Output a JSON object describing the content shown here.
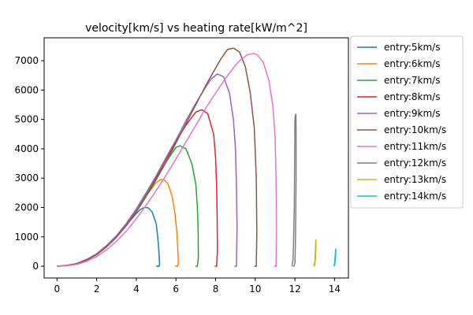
{
  "chart_data": {
    "type": "line",
    "title": "velocity[km/s] vs heating rate[kW/m^2]",
    "xlabel": "",
    "ylabel": "",
    "xlim": [
      -0.65,
      14.7
    ],
    "ylim": [
      -400,
      7780
    ],
    "xticks": [
      0,
      2,
      4,
      6,
      8,
      10,
      12,
      14
    ],
    "yticks": [
      0,
      1000,
      2000,
      3000,
      4000,
      5000,
      6000,
      7000
    ],
    "grid": false,
    "legend_position": "outside-right",
    "series": [
      {
        "name": "entry:5km/s",
        "color": "#1f77b4",
        "x": [
          0,
          0.5,
          1,
          1.5,
          2,
          2.5,
          3,
          3.5,
          4,
          4.2,
          4.4,
          4.6,
          4.8,
          5,
          5.08,
          5.13,
          5.16,
          5.17,
          5.15,
          5.0
        ],
        "y": [
          0,
          30,
          90,
          230,
          420,
          700,
          1020,
          1400,
          1800,
          1930,
          2000,
          1990,
          1850,
          1450,
          1000,
          600,
          250,
          50,
          0,
          0
        ]
      },
      {
        "name": "entry:6km/s",
        "color": "#ff7f0e",
        "x": [
          0,
          0.5,
          1,
          1.5,
          2,
          2.5,
          3,
          3.5,
          4,
          4.5,
          5,
          5.2,
          5.4,
          5.6,
          5.8,
          5.95,
          6.05,
          6.1,
          6.12,
          6.08,
          5.95
        ],
        "y": [
          0,
          30,
          90,
          230,
          420,
          700,
          1030,
          1450,
          1920,
          2400,
          2850,
          2950,
          2950,
          2800,
          2400,
          1800,
          1100,
          500,
          100,
          0,
          0
        ]
      },
      {
        "name": "entry:7km/s",
        "color": "#2ca02c",
        "x": [
          0,
          0.5,
          1,
          1.5,
          2,
          2.5,
          3,
          3.5,
          4,
          4.5,
          5,
          5.5,
          6,
          6.2,
          6.5,
          6.8,
          7.0,
          7.08,
          7.12,
          7.13,
          7.08,
          6.98
        ],
        "y": [
          0,
          30,
          90,
          230,
          420,
          700,
          1030,
          1450,
          1930,
          2450,
          3000,
          3550,
          4050,
          4100,
          4000,
          3500,
          2800,
          2000,
          1100,
          300,
          0,
          0
        ]
      },
      {
        "name": "entry:8km/s",
        "color": "#d62728",
        "x": [
          0,
          0.5,
          1,
          1.5,
          2,
          2.5,
          3,
          3.5,
          4,
          4.5,
          5,
          5.5,
          6,
          6.5,
          7,
          7.3,
          7.6,
          7.9,
          8.0,
          8.05,
          8.08,
          8.09,
          8.05,
          7.95
        ],
        "y": [
          0,
          30,
          90,
          230,
          420,
          700,
          1040,
          1460,
          1950,
          2500,
          3050,
          3650,
          4250,
          4800,
          5250,
          5330,
          5200,
          4500,
          3700,
          2700,
          1600,
          500,
          0,
          0
        ]
      },
      {
        "name": "entry:9km/s",
        "color": "#9467bd",
        "x": [
          0,
          0.5,
          1,
          1.5,
          2,
          2.5,
          3,
          3.5,
          4,
          4.5,
          5,
          5.5,
          6,
          6.5,
          7,
          7.5,
          7.8,
          8.1,
          8.4,
          8.7,
          8.9,
          9.0,
          9.05,
          9.08,
          9.05,
          8.95
        ],
        "y": [
          0,
          30,
          90,
          230,
          420,
          700,
          1040,
          1460,
          1950,
          2500,
          3080,
          3700,
          4300,
          4950,
          5550,
          6100,
          6400,
          6550,
          6450,
          5900,
          5000,
          4000,
          2800,
          1300,
          0,
          0
        ]
      },
      {
        "name": "entry:10km/s",
        "color": "#8c564b",
        "x": [
          0,
          0.5,
          1,
          1.5,
          2,
          2.5,
          3,
          3.5,
          4,
          4.5,
          5,
          5.5,
          6,
          6.5,
          7,
          7.5,
          8,
          8.3,
          8.6,
          8.9,
          9.2,
          9.5,
          9.75,
          9.95,
          10.05,
          10.08,
          10.05,
          9.95
        ],
        "y": [
          0,
          25,
          80,
          210,
          390,
          660,
          990,
          1390,
          1850,
          2380,
          2950,
          3550,
          4200,
          4850,
          5500,
          6150,
          6750,
          7100,
          7380,
          7430,
          7300,
          6800,
          5900,
          4700,
          3000,
          1200,
          0,
          0
        ]
      },
      {
        "name": "entry:11km/s",
        "color": "#e377c2",
        "x": [
          0,
          0.5,
          1,
          1.5,
          2,
          2.5,
          3,
          3.5,
          4,
          4.5,
          5,
          5.5,
          6,
          6.5,
          7,
          7.5,
          8,
          8.5,
          9,
          9.3,
          9.6,
          9.9,
          10.1,
          10.4,
          10.7,
          10.9,
          11.0,
          11.05,
          11.07,
          11.05,
          10.95
        ],
        "y": [
          0,
          15,
          60,
          170,
          330,
          560,
          850,
          1200,
          1620,
          2080,
          2580,
          3100,
          3650,
          4230,
          4800,
          5380,
          5900,
          6400,
          6850,
          7050,
          7200,
          7250,
          7200,
          6950,
          6300,
          5400,
          4400,
          3000,
          1200,
          0,
          0
        ]
      },
      {
        "name": "entry:12km/s",
        "color": "#7f7f7f",
        "x": [
          11.85,
          11.9,
          11.93,
          11.95,
          11.97,
          11.98,
          11.99,
          12.0,
          12.01,
          12.03,
          12.05,
          12.06,
          12.06,
          12.04,
          12.02,
          12.0,
          11.95,
          11.9
        ],
        "y": [
          0,
          200,
          700,
          1400,
          2000,
          3000,
          4000,
          4900,
          5100,
          5150,
          5180,
          4500,
          3000,
          1500,
          600,
          100,
          0,
          0
        ]
      },
      {
        "name": "entry:13km/s",
        "color": "#bcbd22",
        "x": [
          12.95,
          13.0,
          13.02,
          13.04,
          13.05,
          13.06,
          13.06,
          13.04,
          13.0,
          12.97
        ],
        "y": [
          0,
          150,
          400,
          650,
          850,
          900,
          700,
          300,
          50,
          0
        ]
      },
      {
        "name": "entry:14km/s",
        "color": "#17becf",
        "x": [
          13.97,
          14.0,
          14.02,
          14.04,
          14.05,
          14.06,
          14.06,
          14.04,
          14.0,
          13.98
        ],
        "y": [
          0,
          100,
          250,
          420,
          550,
          580,
          450,
          200,
          40,
          0
        ]
      }
    ]
  }
}
